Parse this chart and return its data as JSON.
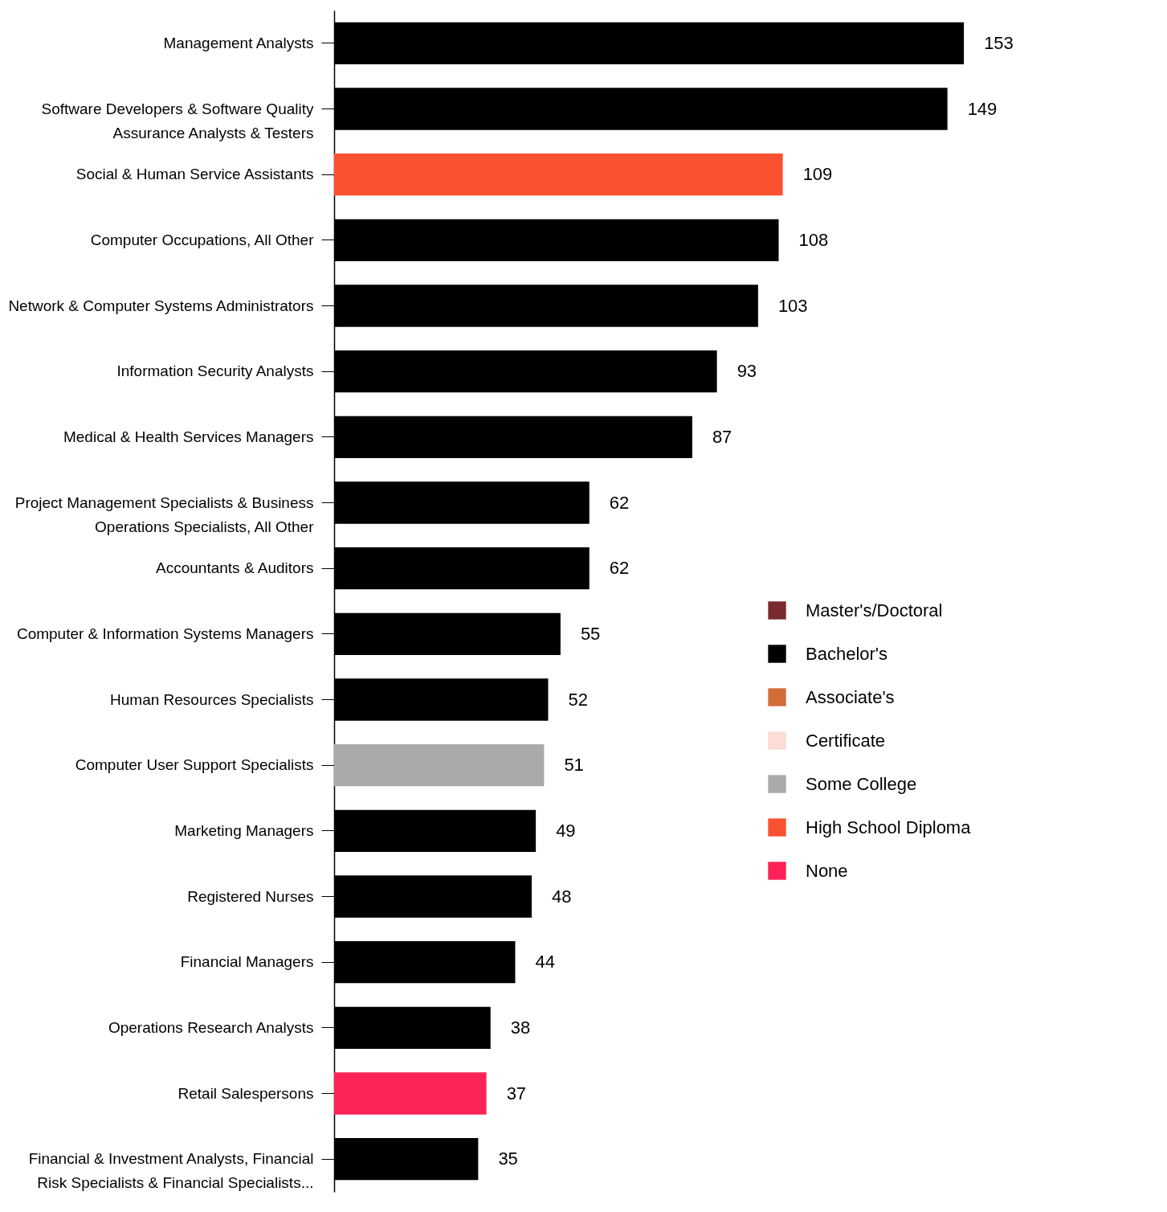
{
  "chart_data": {
    "type": "bar",
    "orientation": "horizontal",
    "data_labels": true,
    "tick_labels": "y",
    "grid": false,
    "legend": "right",
    "categories": [
      "Management Analysts",
      "Software Developers & Software Quality Assurance Analysts & Testers",
      "Social & Human Service Assistants",
      "Computer Occupations, All Other",
      "Network & Computer Systems Administrators",
      "Information Security Analysts",
      "Medical & Health Services Managers",
      "Project Management Specialists & Business Operations Specialists, All Other",
      "Accountants & Auditors",
      "Computer & Information Systems Managers",
      "Human Resources Specialists",
      "Computer User Support Specialists",
      "Marketing Managers",
      "Registered Nurses",
      "Financial Managers",
      "Operations Research Analysts",
      "Retail Salespersons",
      "Financial & Investment Analysts, Financial Risk Specialists & Financial Specialists..."
    ],
    "series": [
      {
        "name": "Master's/Doctoral",
        "color": "#7a2a2e",
        "values": [
          null,
          null,
          null,
          null,
          null,
          null,
          null,
          null,
          null,
          null,
          null,
          null,
          null,
          null,
          null,
          null,
          null,
          null
        ]
      },
      {
        "name": "Bachelor's",
        "color": "#000000",
        "values": [
          153,
          149,
          null,
          108,
          103,
          93,
          87,
          62,
          62,
          55,
          52,
          null,
          49,
          48,
          44,
          38,
          null,
          35
        ]
      },
      {
        "name": "Associate's",
        "color": "#d46c3a",
        "values": [
          null,
          null,
          null,
          null,
          null,
          null,
          null,
          null,
          null,
          null,
          null,
          null,
          null,
          null,
          null,
          null,
          null,
          null
        ]
      },
      {
        "name": "Certificate",
        "color": "#fcdcd4",
        "values": [
          null,
          null,
          null,
          null,
          null,
          null,
          null,
          null,
          null,
          null,
          null,
          null,
          null,
          null,
          null,
          null,
          null,
          null
        ]
      },
      {
        "name": "Some College",
        "color": "#aaaaaa",
        "values": [
          null,
          null,
          null,
          null,
          null,
          null,
          null,
          null,
          null,
          null,
          null,
          51,
          null,
          null,
          null,
          null,
          null,
          null
        ]
      },
      {
        "name": "High School Diploma",
        "color": "#fa5130",
        "values": [
          null,
          null,
          109,
          null,
          null,
          null,
          null,
          null,
          null,
          null,
          null,
          null,
          null,
          null,
          null,
          null,
          null,
          null
        ]
      },
      {
        "name": "None",
        "color": "#fd2356",
        "values": [
          null,
          null,
          null,
          null,
          null,
          null,
          null,
          null,
          null,
          null,
          null,
          null,
          null,
          null,
          null,
          null,
          37,
          null
        ]
      }
    ]
  }
}
